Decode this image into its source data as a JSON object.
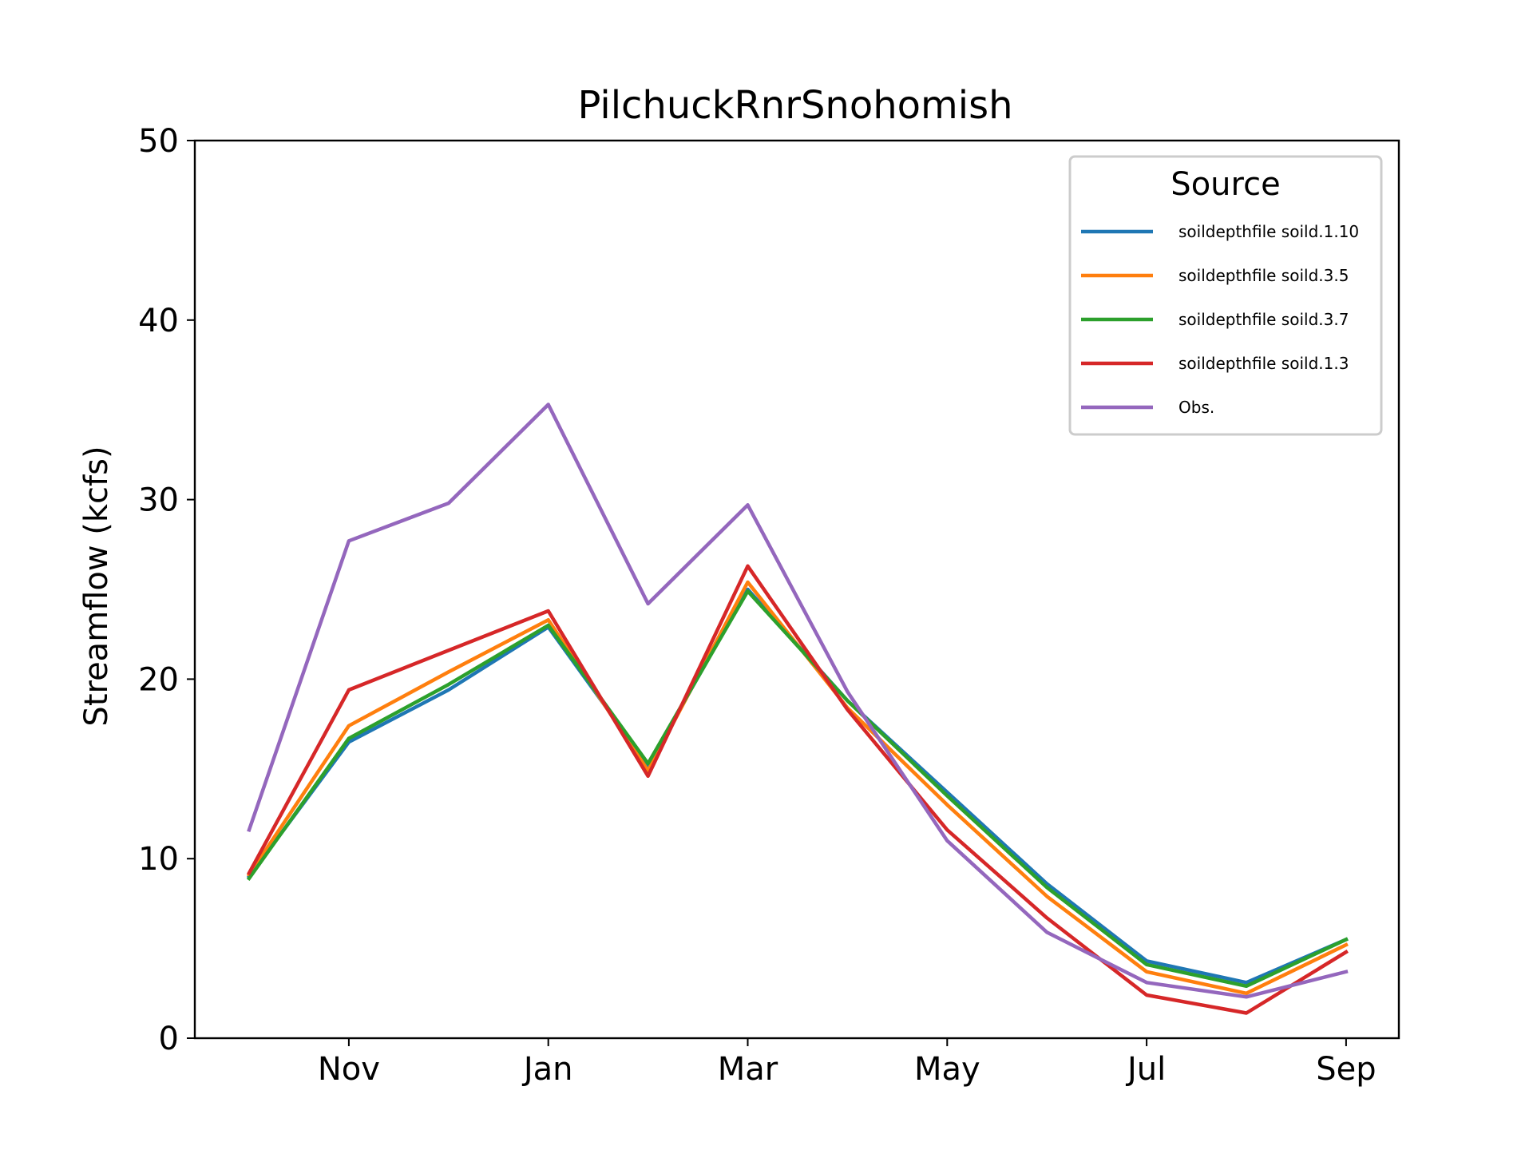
{
  "chart_data": {
    "type": "line",
    "title": "PilchuckRnrSnohomish",
    "xlabel": "",
    "ylabel": "Streamflow (kcfs)",
    "ylim": [
      0,
      50
    ],
    "yticks": [
      "0",
      "10",
      "20",
      "30",
      "40",
      "50"
    ],
    "categories": [
      "Oct",
      "Nov",
      "Dec",
      "Jan",
      "Feb",
      "Mar",
      "Apr",
      "May",
      "Jun",
      "Jul",
      "Aug",
      "Sep"
    ],
    "xtick_labels": [
      "",
      "Nov",
      "",
      "Jan",
      "",
      "Mar",
      "",
      "May",
      "",
      "Jul",
      "",
      "Sep"
    ],
    "legend": {
      "title": "Source",
      "position": "top-right"
    },
    "grid": false,
    "series": [
      {
        "name": "soildepthfile soild.1.10",
        "color": "#1f77b4",
        "values": [
          9.0,
          16.5,
          19.4,
          22.9,
          15.2,
          25.0,
          18.8,
          13.7,
          8.6,
          4.3,
          3.1,
          5.5
        ]
      },
      {
        "name": "soildepthfile soild.3.5",
        "color": "#ff7f0e",
        "values": [
          9.1,
          17.4,
          20.4,
          23.3,
          14.9,
          25.4,
          18.4,
          13.0,
          7.9,
          3.7,
          2.5,
          5.2
        ]
      },
      {
        "name": "soildepthfile soild.3.7",
        "color": "#2ca02c",
        "values": [
          8.9,
          16.7,
          19.7,
          23.0,
          15.3,
          24.9,
          18.8,
          13.5,
          8.4,
          4.1,
          2.9,
          5.5
        ]
      },
      {
        "name": "soildepthfile soild.1.3",
        "color": "#d62728",
        "values": [
          9.2,
          19.4,
          21.6,
          23.8,
          14.6,
          26.3,
          18.3,
          11.6,
          6.7,
          2.4,
          1.4,
          4.8
        ]
      },
      {
        "name": "Obs.",
        "color": "#9467bd",
        "values": [
          11.6,
          27.7,
          29.8,
          35.3,
          24.2,
          29.7,
          19.3,
          11.0,
          5.9,
          3.1,
          2.3,
          3.7
        ]
      }
    ]
  }
}
